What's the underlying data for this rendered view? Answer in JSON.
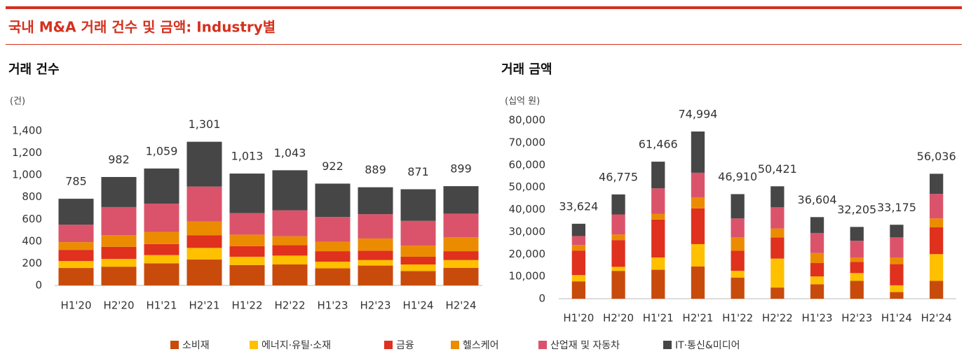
{
  "title": "국내 M&A 거래 건수 및 금액: Industry별",
  "chart_data": [
    {
      "type": "stacked-bar",
      "title": "거래 건수",
      "unit": "(건)",
      "categories": [
        "H1'20",
        "H2'20",
        "H1'21",
        "H2'21",
        "H1'22",
        "H2'22",
        "H1'23",
        "H2'23",
        "H1'24",
        "H2'24"
      ],
      "series": [
        {
          "name": "소비재",
          "color": "#c84b0c",
          "values": [
            158,
            170,
            200,
            235,
            185,
            190,
            155,
            180,
            130,
            160
          ]
        },
        {
          "name": "에너지·유틸·소재",
          "color": "#ffc000",
          "values": [
            63,
            70,
            75,
            105,
            75,
            80,
            60,
            50,
            60,
            70
          ]
        },
        {
          "name": "금융",
          "color": "#e0301e",
          "values": [
            101,
            110,
            100,
            115,
            95,
            95,
            95,
            85,
            70,
            80
          ]
        },
        {
          "name": "헬스케어",
          "color": "#eb8c00",
          "values": [
            70,
            105,
            110,
            125,
            105,
            80,
            85,
            110,
            100,
            125
          ]
        },
        {
          "name": "산업재 및 자동차",
          "color": "#db536a",
          "values": [
            158,
            255,
            255,
            315,
            195,
            235,
            225,
            220,
            225,
            215
          ]
        },
        {
          "name": "IT·통신&미디어",
          "color": "#464646",
          "values": [
            235,
            272,
            319,
            406,
            358,
            363,
            302,
            244,
            286,
            249
          ]
        }
      ],
      "totals": [
        785,
        982,
        1059,
        1301,
        1013,
        1043,
        922,
        889,
        871,
        899
      ],
      "total_labels": [
        "785",
        "982",
        "1,059",
        "1,301",
        "1,013",
        "1,043",
        "922",
        "889",
        "871",
        "899"
      ],
      "ylim": [
        0,
        1400
      ],
      "yticks": [
        0,
        200,
        400,
        600,
        800,
        {
          "value": 1000,
          "label": "1,000"
        },
        {
          "value": 1200,
          "label": "1,200"
        },
        {
          "value": 1400,
          "label": "1,400"
        }
      ]
    },
    {
      "type": "stacked-bar",
      "title": "거래 금액",
      "unit": "(십억 원)",
      "categories": [
        "H1'20",
        "H2'20",
        "H1'21",
        "H2'21",
        "H1'22",
        "H2'22",
        "H1'23",
        "H2'23",
        "H1'24",
        "H2'24"
      ],
      "series": [
        {
          "name": "소비재",
          "color": "#c84b0c",
          "values": [
            7800,
            12500,
            13000,
            14500,
            9500,
            5000,
            6500,
            8000,
            3000,
            8000
          ]
        },
        {
          "name": "에너지·유틸·소재",
          "color": "#ffc000",
          "values": [
            2800,
            1800,
            5500,
            10000,
            3000,
            13000,
            3500,
            3500,
            3000,
            12000
          ]
        },
        {
          "name": "금융",
          "color": "#e0301e",
          "values": [
            11000,
            12000,
            17000,
            16000,
            9000,
            9500,
            6000,
            5000,
            9500,
            12000
          ]
        },
        {
          "name": "헬스케어",
          "color": "#eb8c00",
          "values": [
            2500,
            2500,
            2500,
            5000,
            6000,
            4000,
            4500,
            2000,
            3000,
            4000
          ]
        },
        {
          "name": "산업재 및 자동차",
          "color": "#db536a",
          "values": [
            4000,
            9000,
            11500,
            11000,
            8500,
            9500,
            9000,
            7500,
            9000,
            11000
          ]
        },
        {
          "name": "IT·통신&미디어",
          "color": "#464646",
          "values": [
            5524,
            8975,
            11966,
            18494,
            10910,
            9421,
            7104,
            6205,
            5675,
            9036
          ]
        }
      ],
      "totals": [
        33624,
        46775,
        61466,
        74994,
        46910,
        50421,
        36604,
        32205,
        33175,
        56036
      ],
      "total_labels": [
        "33,624",
        "46,775",
        "61,466",
        "74,994",
        "46,910",
        "50,421",
        "36,604",
        "32,205",
        "33,175",
        "56,036"
      ],
      "ylim": [
        0,
        80000
      ],
      "yticks": [
        0,
        {
          "value": 10000,
          "label": "10,000"
        },
        {
          "value": 20000,
          "label": "20,000"
        },
        {
          "value": 30000,
          "label": "30,000"
        },
        {
          "value": 40000,
          "label": "40,000"
        },
        {
          "value": 50000,
          "label": "50,000"
        },
        {
          "value": 60000,
          "label": "60,000"
        },
        {
          "value": 70000,
          "label": "70,000"
        },
        {
          "value": 80000,
          "label": "80,000"
        }
      ]
    }
  ]
}
